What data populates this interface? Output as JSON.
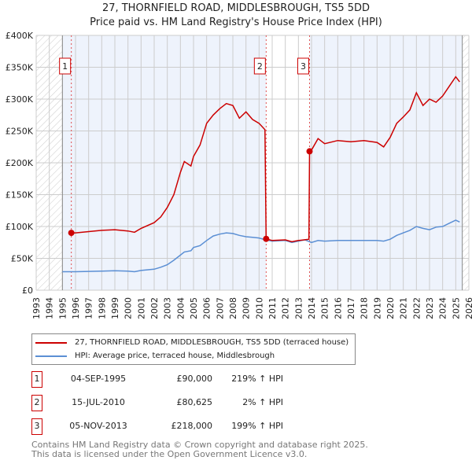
{
  "title": "27, THORNFIELD ROAD, MIDDLESBROUGH, TS5 5DD",
  "subtitle": "Price paid vs. HM Land Registry's House Price Index (HPI)",
  "chart_data": {
    "type": "line",
    "xlim": [
      1993,
      2026
    ],
    "ylim": [
      0,
      400000
    ],
    "yticks": [
      {
        "v": 0,
        "label": "£0"
      },
      {
        "v": 50000,
        "label": "£50K"
      },
      {
        "v": 100000,
        "label": "£100K"
      },
      {
        "v": 150000,
        "label": "£150K"
      },
      {
        "v": 200000,
        "label": "£200K"
      },
      {
        "v": 250000,
        "label": "£250K"
      },
      {
        "v": 300000,
        "label": "£300K"
      },
      {
        "v": 350000,
        "label": "£350K"
      },
      {
        "v": 400000,
        "label": "£400K"
      }
    ],
    "xticks": [
      "1993",
      "1994",
      "1995",
      "1996",
      "1997",
      "1998",
      "1999",
      "2000",
      "2001",
      "2002",
      "2003",
      "2004",
      "2005",
      "2006",
      "2007",
      "2008",
      "2009",
      "2010",
      "2011",
      "2012",
      "2013",
      "2014",
      "2015",
      "2016",
      "2017",
      "2018",
      "2019",
      "2020",
      "2021",
      "2022",
      "2023",
      "2024",
      "2025",
      "2026"
    ],
    "data_range": [
      1995,
      2025.5
    ],
    "colors": {
      "price": "#cc0000",
      "hpi": "#5b8fd4",
      "shade": "#eef3fc"
    },
    "series": [
      {
        "name": "27, THORNFIELD ROAD, MIDDLESBROUGH, TS5 5DD (terraced house)",
        "color": "#cc0000",
        "x": [
          1995.7,
          1996,
          1997,
          1998,
          1999,
          2000,
          2000.5,
          2001,
          2002,
          2002.5,
          2003,
          2003.5,
          2004,
          2004.3,
          2004.8,
          2005,
          2005.5,
          2006,
          2006.5,
          2007,
          2007.5,
          2008,
          2008.5,
          2009,
          2009.5,
          2010,
          2010.45,
          2010.54,
          2011,
          2012,
          2012.5,
          2013,
          2013.8,
          2013.85,
          2014,
          2014.5,
          2015,
          2016,
          2017,
          2018,
          2019,
          2019.5,
          2020,
          2020.5,
          2021,
          2021.5,
          2022,
          2022.5,
          2023,
          2023.5,
          2024,
          2024.5,
          2025,
          2025.3
        ],
        "y": [
          90000,
          90000,
          92000,
          94000,
          95000,
          93000,
          91000,
          97000,
          106000,
          115000,
          130000,
          150000,
          185000,
          202000,
          195000,
          210000,
          228000,
          262000,
          275000,
          285000,
          293000,
          290000,
          270000,
          280000,
          268000,
          262000,
          252000,
          80625,
          78000,
          79000,
          76000,
          78000,
          80000,
          218000,
          220000,
          238000,
          230000,
          235000,
          233000,
          235000,
          232000,
          225000,
          240000,
          262000,
          272000,
          283000,
          310000,
          290000,
          300000,
          295000,
          305000,
          320000,
          335000,
          327000
        ]
      },
      {
        "name": "HPI: Average price, terraced house, Middlesbrough",
        "color": "#5b8fd4",
        "x": [
          1995,
          1996,
          1997,
          1998,
          1999,
          2000,
          2000.5,
          2001,
          2002,
          2002.5,
          2003,
          2003.5,
          2004,
          2004.3,
          2004.8,
          2005,
          2005.5,
          2006,
          2006.5,
          2007,
          2007.5,
          2008,
          2008.5,
          2009,
          2009.5,
          2010,
          2010.5,
          2011,
          2012,
          2012.5,
          2013,
          2013.5,
          2014,
          2014.5,
          2015,
          2016,
          2017,
          2018,
          2019,
          2019.5,
          2020,
          2020.5,
          2021,
          2021.5,
          2022,
          2022.5,
          2023,
          2023.5,
          2024,
          2024.5,
          2025,
          2025.3
        ],
        "y": [
          29000,
          29000,
          29500,
          30000,
          30500,
          30000,
          29000,
          31000,
          33000,
          36000,
          40000,
          47000,
          55000,
          60000,
          62000,
          67000,
          70000,
          78000,
          85000,
          88000,
          90000,
          89000,
          86000,
          84000,
          83000,
          82000,
          79000,
          77000,
          78000,
          75000,
          77000,
          79000,
          75000,
          78000,
          77000,
          78000,
          78000,
          78000,
          78000,
          77000,
          80000,
          86000,
          90000,
          94000,
          100000,
          97000,
          95000,
          99000,
          100000,
          105000,
          110000,
          107000
        ]
      }
    ],
    "sales": [
      {
        "label": "1",
        "x": 1995.68,
        "y": 90000
      },
      {
        "label": "2",
        "x": 2010.54,
        "y": 80625
      },
      {
        "label": "3",
        "x": 2013.85,
        "y": 218000
      }
    ]
  },
  "legend": [
    {
      "label": "27, THORNFIELD ROAD, MIDDLESBROUGH, TS5 5DD (terraced house)",
      "color": "#cc0000"
    },
    {
      "label": "HPI: Average price, terraced house, Middlesbrough",
      "color": "#5b8fd4"
    }
  ],
  "transactions": [
    {
      "num": "1",
      "date": "04-SEP-1995",
      "price": "£90,000",
      "hpi": "219% ↑ HPI"
    },
    {
      "num": "2",
      "date": "15-JUL-2010",
      "price": "£80,625",
      "hpi": "2% ↑ HPI"
    },
    {
      "num": "3",
      "date": "05-NOV-2013",
      "price": "£218,000",
      "hpi": "199% ↑ HPI"
    }
  ],
  "footer": [
    "Contains HM Land Registry data © Crown copyright and database right 2025.",
    "This data is licensed under the Open Government Licence v3.0."
  ]
}
